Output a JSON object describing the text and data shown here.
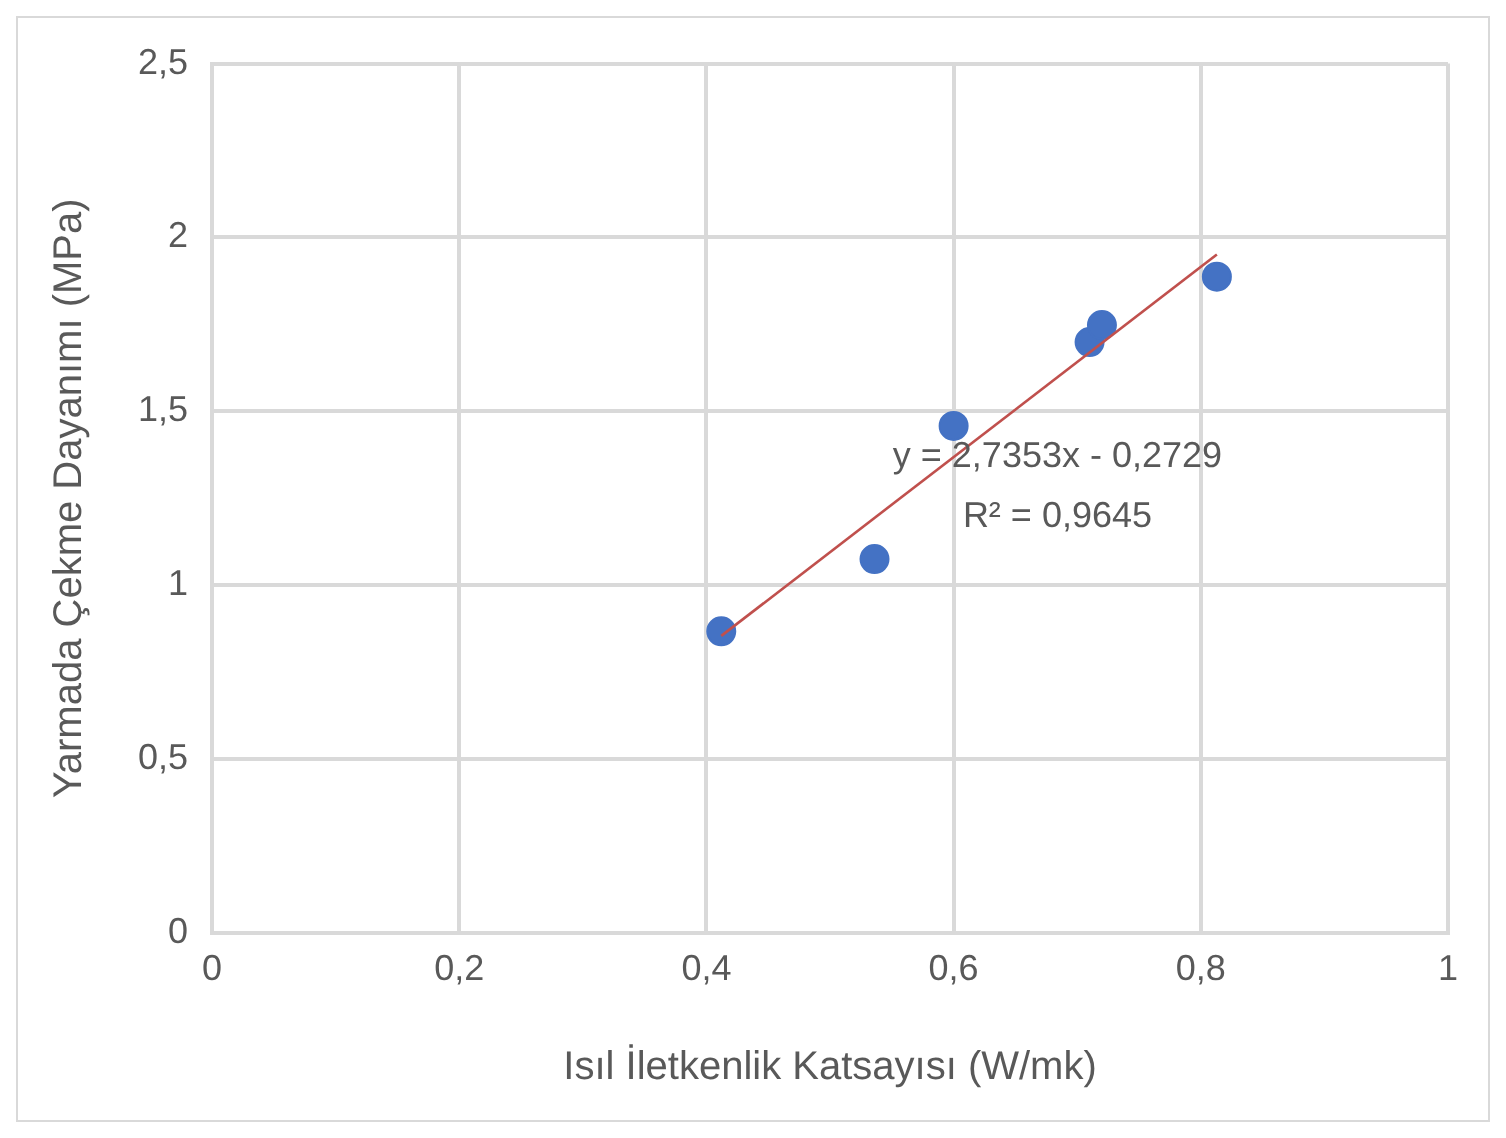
{
  "chart_data": {
    "type": "scatter",
    "xlabel": "Isıl İletkenlik Katsayısı (W/mk)",
    "ylabel": "Yarmada Çekme Dayanımı (MPa)",
    "series": [
      {
        "color": "#4472c4",
        "marker": "circle",
        "x": [
          0.412,
          0.536,
          0.6,
          0.71,
          0.72,
          0.813
        ],
        "values": [
          0.867,
          1.075,
          1.458,
          1.699,
          1.748,
          1.887
        ]
      },
      {
        "type": "line",
        "color": "#c0504d",
        "x": [
          0.412,
          0.813
        ],
        "values": [
          0.854,
          1.951
        ]
      }
    ],
    "xlim": [
      0,
      1
    ],
    "xticks": [
      {
        "value": 0,
        "label": "0"
      },
      {
        "value": 0.2,
        "label": "0,2"
      },
      {
        "value": 0.4,
        "label": "0,4"
      },
      {
        "value": 0.6,
        "label": "0,6"
      },
      {
        "value": 0.8,
        "label": "0,8"
      },
      {
        "value": 1,
        "label": "1"
      }
    ],
    "ylim": [
      0,
      2.5
    ],
    "yticks": [
      {
        "value": 0,
        "label": "0"
      },
      {
        "value": 0.5,
        "label": "0,5"
      },
      {
        "value": 1,
        "label": "1"
      },
      {
        "value": 1.5,
        "label": "1,5"
      },
      {
        "value": 2,
        "label": "2"
      },
      {
        "value": 2.5,
        "label": "2,5"
      }
    ],
    "annotations": [
      "y = 2,7353x - 0,2729",
      "R² = 0,9645"
    ],
    "grid": true,
    "legend": false
  }
}
